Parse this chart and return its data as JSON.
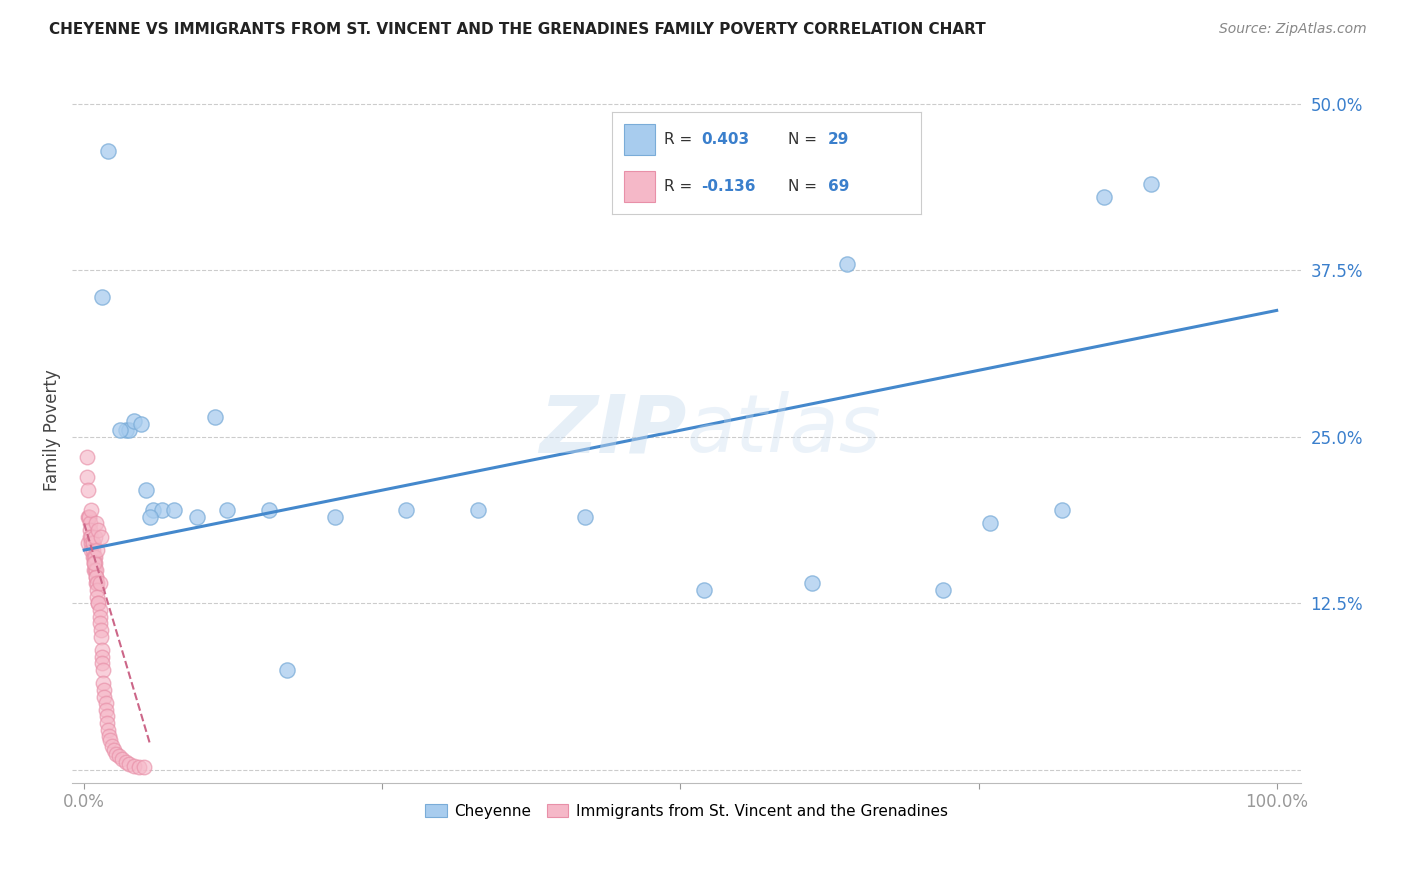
{
  "title": "CHEYENNE VS IMMIGRANTS FROM ST. VINCENT AND THE GRENADINES FAMILY POVERTY CORRELATION CHART",
  "source": "Source: ZipAtlas.com",
  "ylabel": "Family Poverty",
  "watermark": "ZIPatlas",
  "legend_label_blue": "Cheyenne",
  "legend_label_pink": "Immigrants from St. Vincent and the Grenadines",
  "xlim": [
    -0.01,
    1.02
  ],
  "ylim": [
    -0.01,
    0.52
  ],
  "yticks": [
    0.0,
    0.125,
    0.25,
    0.375,
    0.5
  ],
  "ytick_labels": [
    "",
    "12.5%",
    "25.0%",
    "37.5%",
    "50.0%"
  ],
  "xtick_positions": [
    0.0,
    0.25,
    0.5,
    0.75,
    1.0
  ],
  "xtick_labels": [
    "0.0%",
    "",
    "",
    "",
    "100.0%"
  ],
  "blue_color": "#A8CCEE",
  "blue_edge_color": "#7AACD8",
  "pink_color": "#F5B8C8",
  "pink_edge_color": "#E890A8",
  "trend_blue_color": "#4488CC",
  "trend_pink_color": "#CC6688",
  "cheyenne_x": [
    0.015,
    0.02,
    0.035,
    0.038,
    0.042,
    0.048,
    0.052,
    0.058,
    0.065,
    0.075,
    0.095,
    0.12,
    0.155,
    0.21,
    0.27,
    0.33,
    0.42,
    0.52,
    0.61,
    0.64,
    0.72,
    0.76,
    0.82,
    0.855,
    0.895,
    0.03,
    0.055,
    0.11,
    0.17
  ],
  "cheyenne_y": [
    0.355,
    0.465,
    0.255,
    0.255,
    0.262,
    0.26,
    0.21,
    0.195,
    0.195,
    0.195,
    0.19,
    0.195,
    0.195,
    0.19,
    0.195,
    0.195,
    0.19,
    0.135,
    0.14,
    0.38,
    0.135,
    0.185,
    0.195,
    0.43,
    0.44,
    0.255,
    0.19,
    0.265,
    0.075
  ],
  "immigrants_x": [
    0.002,
    0.003,
    0.003,
    0.004,
    0.004,
    0.005,
    0.005,
    0.005,
    0.006,
    0.006,
    0.006,
    0.007,
    0.007,
    0.007,
    0.008,
    0.008,
    0.008,
    0.009,
    0.009,
    0.009,
    0.01,
    0.01,
    0.01,
    0.01,
    0.011,
    0.011,
    0.011,
    0.012,
    0.012,
    0.013,
    0.013,
    0.013,
    0.014,
    0.014,
    0.015,
    0.015,
    0.015,
    0.016,
    0.016,
    0.017,
    0.017,
    0.018,
    0.018,
    0.019,
    0.019,
    0.02,
    0.021,
    0.022,
    0.023,
    0.025,
    0.027,
    0.029,
    0.032,
    0.035,
    0.038,
    0.042,
    0.046,
    0.05,
    0.006,
    0.007,
    0.008,
    0.009,
    0.01,
    0.011,
    0.012,
    0.013,
    0.014,
    0.002,
    0.003
  ],
  "immigrants_y": [
    0.235,
    0.19,
    0.17,
    0.19,
    0.19,
    0.185,
    0.18,
    0.175,
    0.175,
    0.17,
    0.165,
    0.17,
    0.16,
    0.165,
    0.16,
    0.155,
    0.15,
    0.16,
    0.155,
    0.15,
    0.15,
    0.145,
    0.14,
    0.145,
    0.14,
    0.135,
    0.13,
    0.125,
    0.125,
    0.12,
    0.115,
    0.11,
    0.105,
    0.1,
    0.09,
    0.085,
    0.08,
    0.075,
    0.065,
    0.06,
    0.055,
    0.05,
    0.045,
    0.04,
    0.035,
    0.03,
    0.025,
    0.022,
    0.018,
    0.015,
    0.012,
    0.01,
    0.008,
    0.006,
    0.004,
    0.003,
    0.002,
    0.002,
    0.195,
    0.17,
    0.155,
    0.175,
    0.185,
    0.165,
    0.18,
    0.14,
    0.175,
    0.22,
    0.21
  ],
  "blue_trend_x0": 0.0,
  "blue_trend_y0": 0.165,
  "blue_trend_x1": 1.0,
  "blue_trend_y1": 0.345,
  "pink_trend_x0": 0.0,
  "pink_trend_y0": 0.185,
  "pink_trend_x1": 0.055,
  "pink_trend_y1": 0.02
}
